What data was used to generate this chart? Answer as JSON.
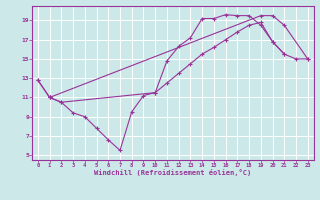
{
  "bg_color": "#cce8e8",
  "grid_color": "#ffffff",
  "line_color": "#993399",
  "xlabel": "Windchill (Refroidissement éolien,°C)",
  "xlim": [
    -0.5,
    23.5
  ],
  "ylim": [
    4.5,
    20.5
  ],
  "yticks": [
    5,
    7,
    9,
    11,
    13,
    15,
    17,
    19
  ],
  "xticks": [
    0,
    1,
    2,
    3,
    4,
    5,
    6,
    7,
    8,
    9,
    10,
    11,
    12,
    13,
    14,
    15,
    16,
    17,
    18,
    19,
    20,
    21,
    22,
    23
  ],
  "series": [
    {
      "x": [
        0,
        1,
        2,
        3,
        4,
        5,
        6,
        7,
        8,
        9,
        10,
        11,
        12,
        13,
        14,
        15,
        16,
        17,
        18,
        19,
        20,
        21,
        22,
        23
      ],
      "y": [
        12.8,
        11.0,
        10.5,
        9.4,
        9.0,
        7.8,
        6.6,
        5.5,
        9.5,
        11.2,
        11.5,
        14.8,
        16.3,
        17.2,
        19.2,
        19.2,
        19.6,
        19.5,
        19.5,
        18.5,
        16.8,
        15.5,
        15.0,
        15.0
      ]
    },
    {
      "x": [
        0,
        1,
        19,
        20,
        21,
        23
      ],
      "y": [
        12.8,
        11.0,
        19.5,
        19.5,
        18.5,
        15.0
      ]
    },
    {
      "x": [
        1,
        2,
        10,
        11,
        12,
        13,
        14,
        15,
        16,
        17,
        18,
        19,
        20,
        21
      ],
      "y": [
        11.0,
        10.5,
        11.5,
        12.5,
        13.5,
        14.5,
        15.5,
        16.2,
        17.0,
        17.8,
        18.5,
        18.8,
        16.8,
        15.5
      ]
    }
  ]
}
